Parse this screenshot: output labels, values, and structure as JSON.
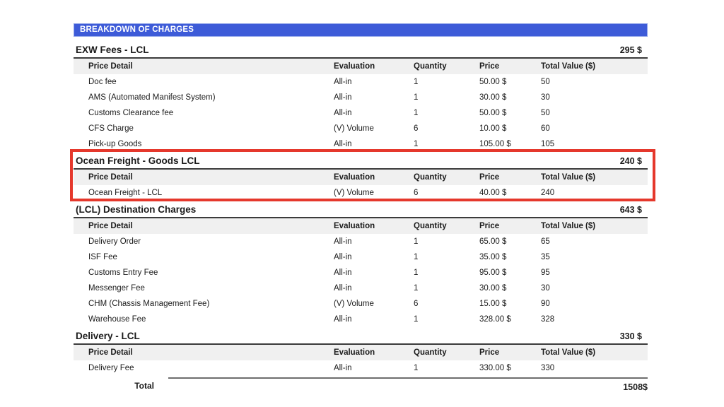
{
  "header": {
    "title": "BREAKDOWN OF CHARGES"
  },
  "colors": {
    "header_bar": "#3d5bd8",
    "highlight_border": "#e5382c",
    "column_band_bg": "#f0f0f0"
  },
  "table": {
    "columns": [
      "Price Detail",
      "Evaluation",
      "Quantity",
      "Price",
      "Total Value ($)"
    ],
    "sections": [
      {
        "title": "EXW Fees - LCL",
        "subtotal": "295 $",
        "highlighted": false,
        "rows": [
          {
            "detail": "Doc fee",
            "evaluation": "All-in",
            "quantity": "1",
            "price": "50.00 $",
            "total": "50"
          },
          {
            "detail": "AMS (Automated Manifest System)",
            "evaluation": "All-in",
            "quantity": "1",
            "price": "30.00 $",
            "total": "30"
          },
          {
            "detail": "Customs Clearance fee",
            "evaluation": "All-in",
            "quantity": "1",
            "price": "50.00 $",
            "total": "50"
          },
          {
            "detail": "CFS Charge",
            "evaluation": "(V) Volume",
            "quantity": "6",
            "price": "10.00 $",
            "total": "60"
          },
          {
            "detail": "Pick-up Goods",
            "evaluation": "All-in",
            "quantity": "1",
            "price": "105.00 $",
            "total": "105"
          }
        ]
      },
      {
        "title": "Ocean Freight - Goods LCL",
        "subtotal": "240 $",
        "highlighted": true,
        "rows": [
          {
            "detail": "Ocean Freight - LCL",
            "evaluation": "(V) Volume",
            "quantity": "6",
            "price": "40.00 $",
            "total": "240"
          }
        ]
      },
      {
        "title": "(LCL) Destination Charges",
        "subtotal": "643 $",
        "highlighted": false,
        "rows": [
          {
            "detail": "Delivery Order",
            "evaluation": "All-in",
            "quantity": "1",
            "price": "65.00 $",
            "total": "65"
          },
          {
            "detail": "ISF Fee",
            "evaluation": "All-in",
            "quantity": "1",
            "price": "35.00 $",
            "total": "35"
          },
          {
            "detail": "Customs Entry Fee",
            "evaluation": "All-in",
            "quantity": "1",
            "price": "95.00 $",
            "total": "95"
          },
          {
            "detail": "Messenger Fee",
            "evaluation": "All-in",
            "quantity": "1",
            "price": "30.00 $",
            "total": "30"
          },
          {
            "detail": "CHM (Chassis Management Fee)",
            "evaluation": "(V) Volume",
            "quantity": "6",
            "price": "15.00 $",
            "total": "90"
          },
          {
            "detail": "Warehouse Fee",
            "evaluation": "All-in",
            "quantity": "1",
            "price": "328.00 $",
            "total": "328"
          }
        ]
      },
      {
        "title": "Delivery - LCL",
        "subtotal": "330 $",
        "highlighted": false,
        "rows": [
          {
            "detail": "Delivery Fee",
            "evaluation": "All-in",
            "quantity": "1",
            "price": "330.00 $",
            "total": "330"
          }
        ]
      }
    ],
    "grand_total": {
      "label": "Total",
      "value": "1508$"
    }
  }
}
